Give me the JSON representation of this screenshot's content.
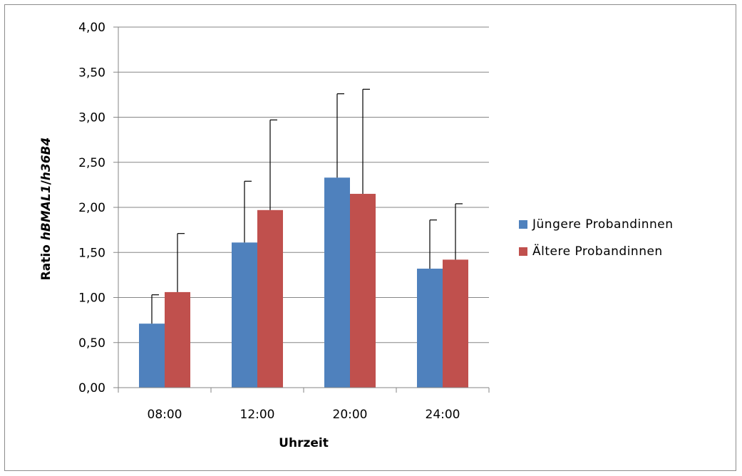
{
  "chart_data": {
    "type": "bar",
    "categories": [
      "08:00",
      "12:00",
      "20:00",
      "24:00"
    ],
    "series": [
      {
        "name": "Jüngere Probandinnen",
        "color": "#4f81bd",
        "values": [
          0.71,
          1.61,
          2.33,
          1.32
        ],
        "error_upper": [
          1.03,
          2.29,
          3.26,
          1.86
        ]
      },
      {
        "name": "Ältere Probandinnen",
        "color": "#c0504d",
        "values": [
          1.06,
          1.97,
          2.15,
          1.42
        ],
        "error_upper": [
          1.71,
          2.97,
          3.31,
          2.04
        ]
      }
    ],
    "xlabel": "Uhrzeit",
    "ylabel": {
      "prefix": "Ratio ",
      "italic": "hBMAL1",
      "suffix": "/",
      "italic2": "h36B4"
    },
    "ylim": [
      0,
      4
    ],
    "yticks": [
      "0,00",
      "0,50",
      "1,00",
      "1,50",
      "2,00",
      "2,50",
      "3,00",
      "3,50",
      "4,00"
    ],
    "ytick_values": [
      0,
      0.5,
      1,
      1.5,
      2,
      2.5,
      3,
      3.5,
      4
    ],
    "grid": "horizontal",
    "legend": "right"
  }
}
